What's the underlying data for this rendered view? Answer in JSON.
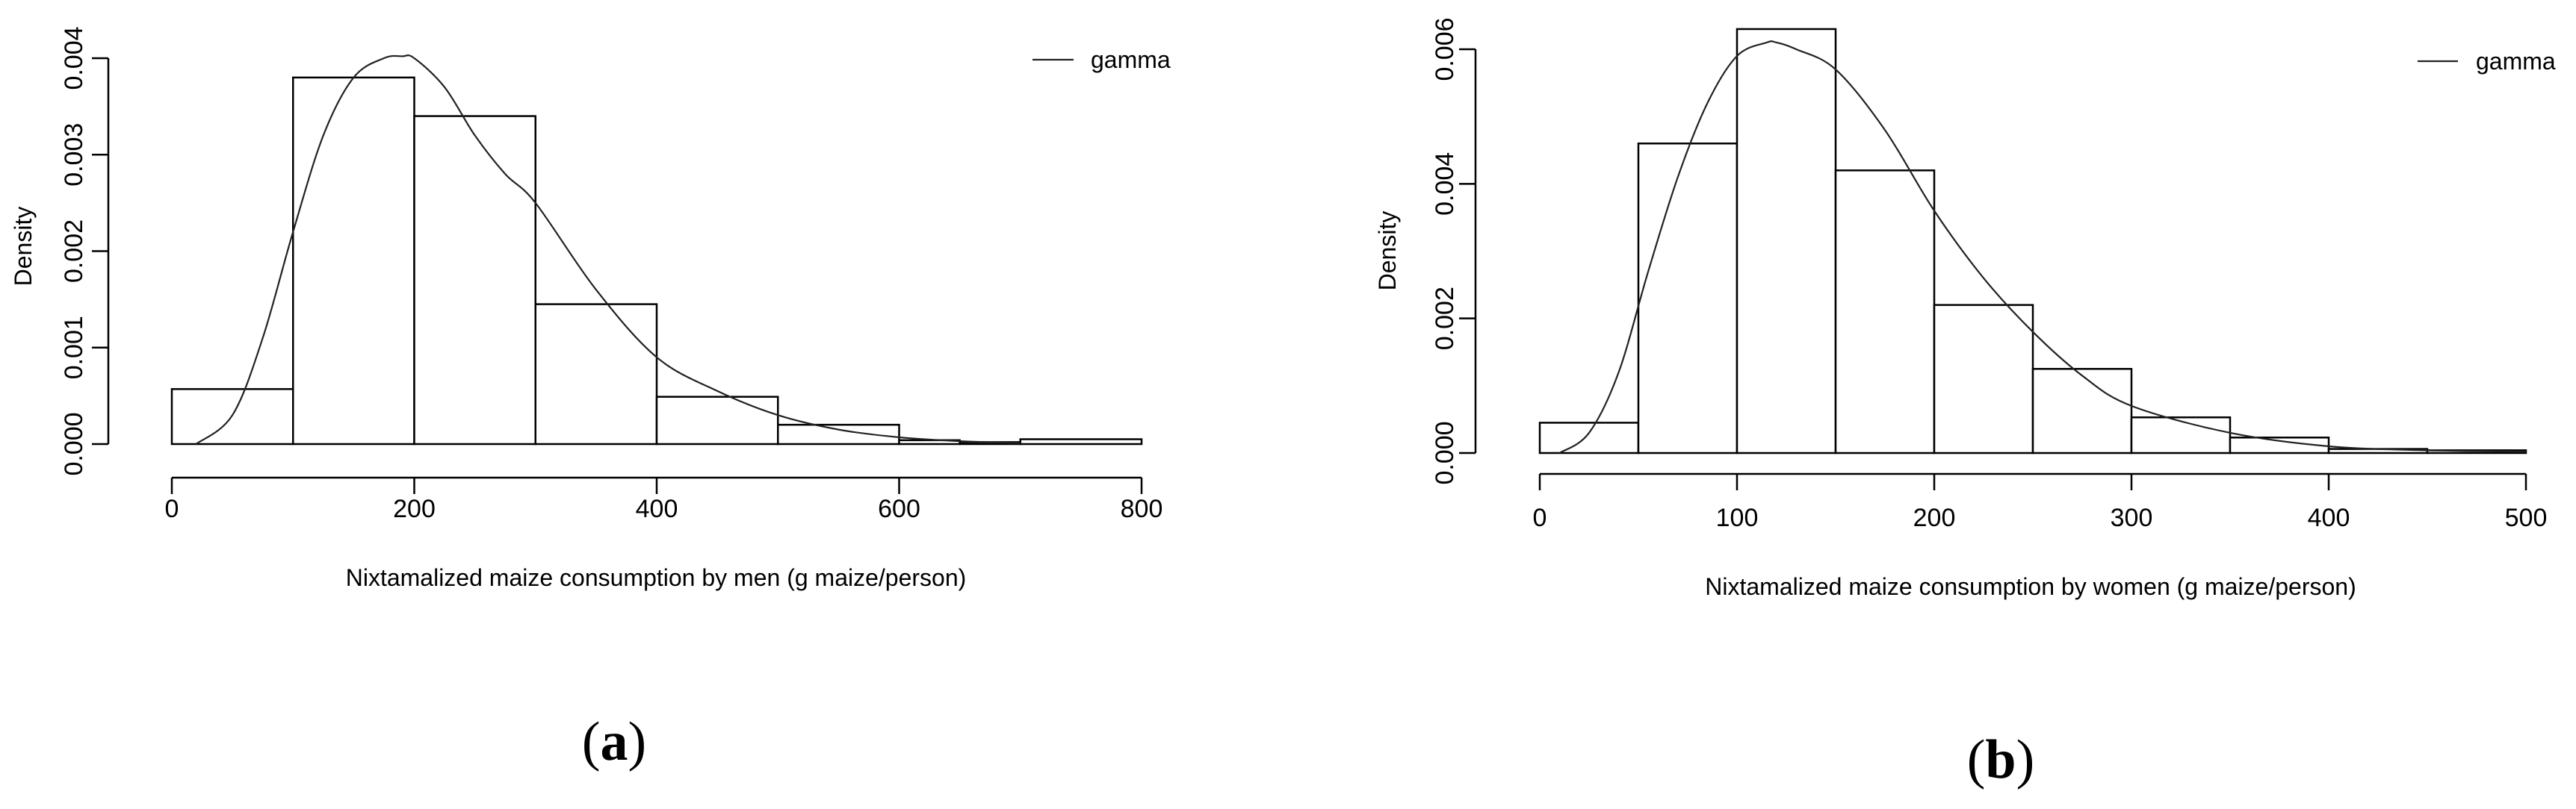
{
  "panels": [
    {
      "label_open": "(",
      "label_letter": "a",
      "label_close": ")"
    },
    {
      "label_open": "(",
      "label_letter": "b",
      "label_close": ")"
    }
  ],
  "chart_data": [
    {
      "type": "bar",
      "subtype": "histogram-with-density-curve",
      "xlabel": "Nixtamalized maize consumption by men (g maize/person)",
      "ylabel": "Density",
      "xlim": [
        0,
        800
      ],
      "ylim": [
        0,
        0.004
      ],
      "x_ticks": [
        0,
        200,
        400,
        600,
        800
      ],
      "x_tick_labels": [
        "0",
        "200",
        "400",
        "600",
        "800"
      ],
      "y_ticks": [
        0,
        0.001,
        0.002,
        0.003,
        0.004
      ],
      "y_tick_labels": [
        "0.000",
        "0.001",
        "0.002",
        "0.003",
        "0.004"
      ],
      "grid": false,
      "legend": {
        "position": "top-right",
        "entries": [
          "gamma"
        ]
      },
      "bins": [
        {
          "from": 0,
          "to": 100,
          "density": 0.00057
        },
        {
          "from": 100,
          "to": 200,
          "density": 0.0038
        },
        {
          "from": 200,
          "to": 300,
          "density": 0.0034
        },
        {
          "from": 300,
          "to": 400,
          "density": 0.00145
        },
        {
          "from": 400,
          "to": 500,
          "density": 0.00049
        },
        {
          "from": 500,
          "to": 600,
          "density": 0.0002
        },
        {
          "from": 600,
          "to": 650,
          "density": 4e-05
        },
        {
          "from": 650,
          "to": 700,
          "density": 2e-05
        },
        {
          "from": 700,
          "to": 800,
          "density": 5e-05
        }
      ],
      "series": [
        {
          "name": "gamma",
          "type": "line",
          "x": [
            20,
            50,
            75,
            100,
            125,
            150,
            175,
            190,
            200,
            225,
            250,
            275,
            300,
            350,
            400,
            450,
            500,
            550,
            600,
            650,
            700
          ],
          "y": [
            0.0,
            0.0003,
            0.0011,
            0.0022,
            0.0032,
            0.0038,
            0.004,
            0.00402,
            0.004,
            0.0037,
            0.0032,
            0.0028,
            0.0025,
            0.0016,
            0.0009,
            0.00055,
            0.0003,
            0.00015,
            7e-05,
            3e-05,
            1e-05
          ]
        }
      ]
    },
    {
      "type": "bar",
      "subtype": "histogram-with-density-curve",
      "xlabel": "Nixtamalized maize consumption by women (g maize/person)",
      "ylabel": "Density",
      "xlim": [
        0,
        500
      ],
      "ylim": [
        0,
        0.006
      ],
      "x_ticks": [
        0,
        100,
        200,
        300,
        400,
        500
      ],
      "x_tick_labels": [
        "0",
        "100",
        "200",
        "300",
        "400",
        "500"
      ],
      "y_ticks": [
        0,
        0.002,
        0.004,
        0.006
      ],
      "y_tick_labels": [
        "0.000",
        "0.002",
        "0.004",
        "0.006"
      ],
      "grid": false,
      "legend": {
        "position": "top-right",
        "entries": [
          "gamma"
        ]
      },
      "bins": [
        {
          "from": 0,
          "to": 50,
          "density": 0.00045
        },
        {
          "from": 50,
          "to": 100,
          "density": 0.0046
        },
        {
          "from": 100,
          "to": 150,
          "density": 0.0063
        },
        {
          "from": 150,
          "to": 200,
          "density": 0.0042
        },
        {
          "from": 200,
          "to": 250,
          "density": 0.0022
        },
        {
          "from": 250,
          "to": 300,
          "density": 0.00125
        },
        {
          "from": 300,
          "to": 350,
          "density": 0.00053
        },
        {
          "from": 350,
          "to": 400,
          "density": 0.00023
        },
        {
          "from": 400,
          "to": 450,
          "density": 6e-05
        },
        {
          "from": 450,
          "to": 500,
          "density": 4e-05
        }
      ],
      "series": [
        {
          "name": "gamma",
          "type": "line",
          "x": [
            10,
            25,
            40,
            55,
            70,
            85,
            100,
            115,
            120,
            130,
            150,
            175,
            200,
            225,
            250,
            275,
            300,
            350,
            400,
            450,
            500
          ],
          "y": [
            0.0,
            0.0003,
            0.0012,
            0.0027,
            0.0041,
            0.0052,
            0.0059,
            0.0061,
            0.0061,
            0.006,
            0.0057,
            0.0048,
            0.0036,
            0.0026,
            0.0018,
            0.00115,
            0.0007,
            0.0003,
            0.0001,
            4e-05,
            2e-05
          ]
        }
      ]
    }
  ]
}
